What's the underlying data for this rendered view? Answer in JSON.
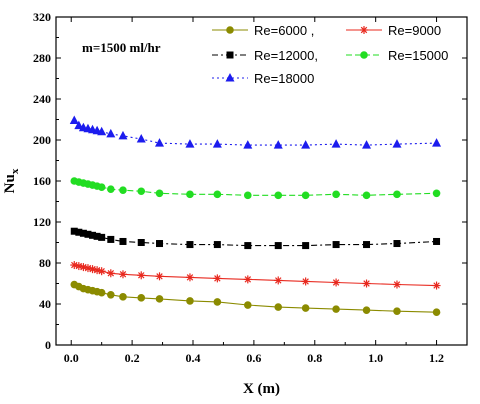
{
  "chart_data": {
    "type": "line",
    "xlabel": "X (m)",
    "ylabel_main": "Nu",
    "ylabel_sub": "x",
    "annotation": "m=1500 ml/hr",
    "xlim": [
      -0.05,
      1.3
    ],
    "ylim": [
      0,
      320
    ],
    "xticks": [
      0.0,
      0.2,
      0.4,
      0.6,
      0.8,
      1.0,
      1.2
    ],
    "xtick_labels": [
      "0.0",
      "0.2",
      "0.4",
      "0.6",
      "0.8",
      "1.0",
      "1.2"
    ],
    "yticks": [
      0,
      40,
      80,
      120,
      160,
      200,
      240,
      280,
      320
    ],
    "ytick_labels": [
      "0",
      "40",
      "80",
      "120",
      "160",
      "200",
      "240",
      "280",
      "320"
    ],
    "legend_position": "top-right",
    "legend": [
      {
        "label": "Re=6000",
        "suffix": " ,",
        "series_index": 0
      },
      {
        "label": "Re=9000",
        "suffix": "",
        "series_index": 1
      },
      {
        "label": "Re=12000,",
        "suffix": "",
        "series_index": 2
      },
      {
        "label": "Re=15000",
        "suffix": "",
        "series_index": 3
      },
      {
        "label": "Re=18000",
        "suffix": "",
        "series_index": 4
      }
    ],
    "series": [
      {
        "name": "Re=6000",
        "color": "#8b8b00",
        "marker": "circle",
        "dash": "",
        "x": [
          0.01,
          0.025,
          0.04,
          0.055,
          0.07,
          0.085,
          0.1,
          0.13,
          0.17,
          0.23,
          0.29,
          0.39,
          0.48,
          0.58,
          0.68,
          0.77,
          0.87,
          0.97,
          1.07,
          1.2
        ],
        "y": [
          59,
          57,
          55,
          54,
          53,
          52,
          51,
          49,
          47,
          46,
          45,
          43,
          42,
          39,
          37,
          36,
          35,
          34,
          33,
          32
        ]
      },
      {
        "name": "Re=9000",
        "color": "#e8281e",
        "marker": "asterisk",
        "dash": "",
        "x": [
          0.01,
          0.025,
          0.04,
          0.055,
          0.07,
          0.085,
          0.1,
          0.13,
          0.17,
          0.23,
          0.29,
          0.39,
          0.48,
          0.58,
          0.68,
          0.77,
          0.87,
          0.97,
          1.07,
          1.2
        ],
        "y": [
          78,
          77,
          76,
          75,
          74,
          73,
          72,
          70,
          69,
          68,
          67,
          66,
          65,
          64,
          63,
          62,
          61,
          60,
          59,
          58
        ]
      },
      {
        "name": "Re=12000,",
        "color": "#000000",
        "marker": "square",
        "dash": "6 3 2 3",
        "x": [
          0.01,
          0.025,
          0.04,
          0.055,
          0.07,
          0.085,
          0.1,
          0.13,
          0.17,
          0.23,
          0.29,
          0.39,
          0.48,
          0.58,
          0.68,
          0.77,
          0.87,
          0.97,
          1.07,
          1.2
        ],
        "y": [
          111,
          110,
          109,
          108,
          107,
          106,
          105,
          103,
          101,
          100,
          99,
          98,
          98,
          97,
          97,
          97,
          98,
          98,
          99,
          101
        ]
      },
      {
        "name": "Re=15000",
        "color": "#22dd22",
        "marker": "circle",
        "dash": "6 3",
        "x": [
          0.01,
          0.025,
          0.04,
          0.055,
          0.07,
          0.085,
          0.1,
          0.13,
          0.17,
          0.23,
          0.29,
          0.39,
          0.48,
          0.58,
          0.68,
          0.77,
          0.87,
          0.97,
          1.07,
          1.2
        ],
        "y": [
          160,
          159,
          158,
          157,
          156,
          155,
          154,
          152,
          151,
          150,
          148,
          147,
          147,
          146,
          146,
          146,
          147,
          146,
          147,
          148
        ]
      },
      {
        "name": "Re=18000",
        "color": "#1c1cee",
        "marker": "triangle",
        "dash": "2 3",
        "x": [
          0.01,
          0.025,
          0.04,
          0.055,
          0.07,
          0.085,
          0.1,
          0.13,
          0.17,
          0.23,
          0.29,
          0.39,
          0.48,
          0.58,
          0.68,
          0.77,
          0.87,
          0.97,
          1.07,
          1.2
        ],
        "y": [
          219,
          214,
          212,
          211,
          210,
          209,
          208,
          206,
          204,
          201,
          197,
          196,
          196,
          195,
          195,
          195,
          196,
          195,
          196,
          197
        ]
      }
    ]
  }
}
